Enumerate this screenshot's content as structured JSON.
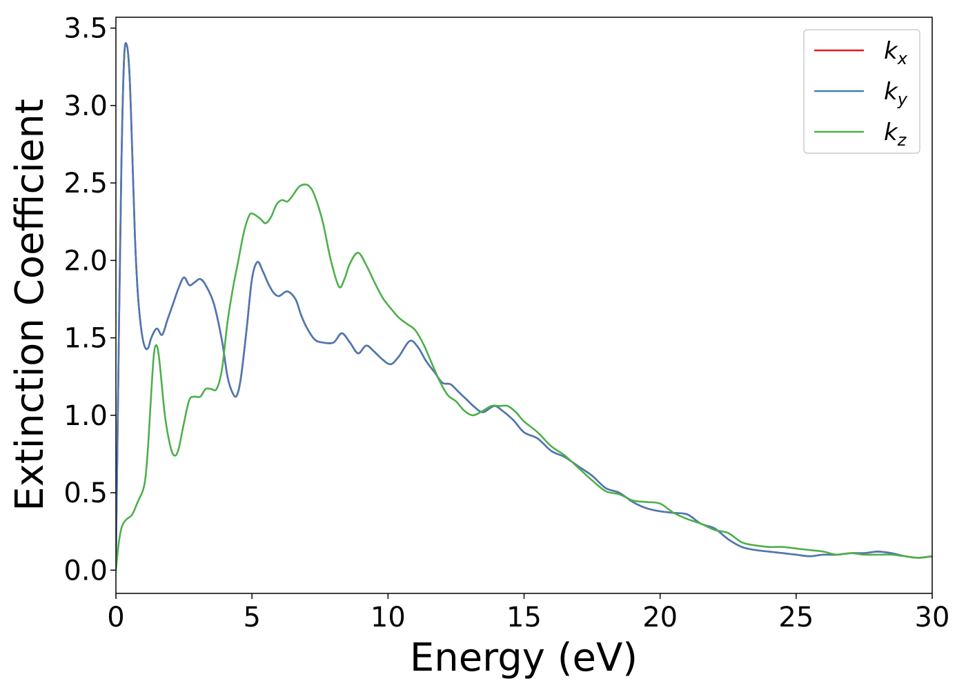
{
  "chart_data": {
    "type": "line",
    "xlabel": "Energy (eV)",
    "ylabel": "Extinction Coefficient",
    "xlim": [
      0,
      30
    ],
    "ylim": [
      -0.15,
      3.57
    ],
    "xticks": [
      0,
      5,
      10,
      15,
      20,
      25,
      30
    ],
    "xtick_labels": [
      "0",
      "5",
      "10",
      "15",
      "20",
      "25",
      "30"
    ],
    "yticks": [
      0.0,
      0.5,
      1.0,
      1.5,
      2.0,
      2.5,
      3.0,
      3.5
    ],
    "ytick_labels": [
      "0.0",
      "0.5",
      "1.0",
      "1.5",
      "2.0",
      "2.5",
      "3.0",
      "3.5"
    ],
    "grid": false,
    "legend_position": "top-right",
    "series": [
      {
        "name": "k",
        "sub": "x",
        "color": "#e41a1c",
        "x": [
          0,
          0.1,
          0.2,
          0.3,
          0.4,
          0.5,
          0.6,
          0.7,
          0.8,
          0.9,
          1.0,
          1.1,
          1.2,
          1.3,
          1.5,
          1.7,
          1.9,
          2.1,
          2.3,
          2.5,
          2.7,
          2.9,
          3.1,
          3.3,
          3.6,
          3.9,
          4.1,
          4.3,
          4.45,
          4.6,
          4.8,
          5.0,
          5.2,
          5.4,
          5.6,
          5.8,
          6.0,
          6.3,
          6.6,
          6.8,
          7.0,
          7.3,
          7.6,
          8.0,
          8.3,
          8.6,
          8.9,
          9.2,
          9.5,
          9.8,
          10.1,
          10.4,
          10.8,
          11.1,
          11.4,
          11.7,
          12.0,
          12.3,
          12.6,
          12.9,
          13.2,
          13.5,
          13.9,
          14.2,
          14.6,
          15.0,
          15.5,
          16.0,
          16.5,
          17.0,
          17.5,
          18.0,
          18.5,
          19.0,
          19.5,
          20.0,
          20.5,
          21.0,
          21.5,
          22.0,
          22.5,
          23.0,
          23.5,
          24.0,
          24.5,
          25.0,
          25.5,
          26.0,
          26.5,
          27.0,
          27.5,
          28.0,
          28.5,
          29.0,
          29.5,
          30.0
        ],
        "y": [
          0.05,
          1.4,
          2.6,
          3.3,
          3.39,
          3.2,
          2.7,
          2.15,
          1.8,
          1.6,
          1.48,
          1.43,
          1.44,
          1.5,
          1.56,
          1.52,
          1.62,
          1.72,
          1.82,
          1.89,
          1.84,
          1.86,
          1.88,
          1.84,
          1.72,
          1.48,
          1.25,
          1.14,
          1.13,
          1.25,
          1.55,
          1.88,
          1.99,
          1.93,
          1.85,
          1.79,
          1.77,
          1.8,
          1.75,
          1.65,
          1.57,
          1.49,
          1.47,
          1.47,
          1.53,
          1.47,
          1.4,
          1.45,
          1.41,
          1.36,
          1.33,
          1.38,
          1.48,
          1.44,
          1.35,
          1.28,
          1.21,
          1.2,
          1.15,
          1.1,
          1.05,
          1.02,
          1.06,
          1.03,
          0.97,
          0.89,
          0.85,
          0.77,
          0.73,
          0.67,
          0.61,
          0.53,
          0.5,
          0.44,
          0.4,
          0.38,
          0.37,
          0.36,
          0.3,
          0.27,
          0.2,
          0.15,
          0.13,
          0.12,
          0.11,
          0.1,
          0.09,
          0.1,
          0.1,
          0.11,
          0.11,
          0.12,
          0.11,
          0.09,
          0.08,
          0.09
        ]
      },
      {
        "name": "k",
        "sub": "y",
        "color": "#4a7ab5",
        "x": [
          0,
          0.1,
          0.2,
          0.3,
          0.4,
          0.5,
          0.6,
          0.7,
          0.8,
          0.9,
          1.0,
          1.1,
          1.2,
          1.3,
          1.5,
          1.7,
          1.9,
          2.1,
          2.3,
          2.5,
          2.7,
          2.9,
          3.1,
          3.3,
          3.6,
          3.9,
          4.1,
          4.3,
          4.45,
          4.6,
          4.8,
          5.0,
          5.2,
          5.4,
          5.6,
          5.8,
          6.0,
          6.3,
          6.6,
          6.8,
          7.0,
          7.3,
          7.6,
          8.0,
          8.3,
          8.6,
          8.9,
          9.2,
          9.5,
          9.8,
          10.1,
          10.4,
          10.8,
          11.1,
          11.4,
          11.7,
          12.0,
          12.3,
          12.6,
          12.9,
          13.2,
          13.5,
          13.9,
          14.2,
          14.6,
          15.0,
          15.5,
          16.0,
          16.5,
          17.0,
          17.5,
          18.0,
          18.5,
          19.0,
          19.5,
          20.0,
          20.5,
          21.0,
          21.5,
          22.0,
          22.5,
          23.0,
          23.5,
          24.0,
          24.5,
          25.0,
          25.5,
          26.0,
          26.5,
          27.0,
          27.5,
          28.0,
          28.5,
          29.0,
          29.5,
          30.0
        ],
        "y": [
          0.05,
          1.4,
          2.6,
          3.3,
          3.39,
          3.2,
          2.7,
          2.15,
          1.8,
          1.6,
          1.48,
          1.43,
          1.44,
          1.5,
          1.56,
          1.52,
          1.62,
          1.72,
          1.82,
          1.89,
          1.84,
          1.86,
          1.88,
          1.84,
          1.72,
          1.48,
          1.25,
          1.14,
          1.13,
          1.25,
          1.55,
          1.88,
          1.99,
          1.93,
          1.85,
          1.79,
          1.77,
          1.8,
          1.75,
          1.65,
          1.57,
          1.49,
          1.47,
          1.47,
          1.53,
          1.47,
          1.4,
          1.45,
          1.41,
          1.36,
          1.33,
          1.38,
          1.48,
          1.44,
          1.35,
          1.28,
          1.21,
          1.2,
          1.15,
          1.1,
          1.05,
          1.02,
          1.06,
          1.03,
          0.97,
          0.89,
          0.85,
          0.77,
          0.73,
          0.67,
          0.61,
          0.53,
          0.5,
          0.44,
          0.4,
          0.38,
          0.37,
          0.36,
          0.3,
          0.27,
          0.2,
          0.15,
          0.13,
          0.12,
          0.11,
          0.1,
          0.09,
          0.1,
          0.1,
          0.11,
          0.11,
          0.12,
          0.11,
          0.09,
          0.08,
          0.09
        ]
      },
      {
        "name": "k",
        "sub": "z",
        "color": "#4daf4a",
        "x": [
          0,
          0.1,
          0.2,
          0.3,
          0.4,
          0.6,
          0.8,
          1.0,
          1.1,
          1.2,
          1.3,
          1.4,
          1.5,
          1.6,
          1.8,
          2.0,
          2.15,
          2.3,
          2.5,
          2.7,
          2.9,
          3.1,
          3.3,
          3.5,
          3.7,
          3.9,
          4.1,
          4.3,
          4.5,
          4.7,
          4.9,
          5.05,
          5.3,
          5.5,
          5.7,
          5.9,
          6.1,
          6.3,
          6.5,
          6.7,
          6.9,
          7.1,
          7.3,
          7.6,
          7.9,
          8.2,
          8.4,
          8.6,
          8.9,
          9.2,
          9.5,
          9.8,
          10.1,
          10.4,
          10.7,
          11.0,
          11.3,
          11.6,
          11.9,
          12.2,
          12.5,
          12.8,
          13.1,
          13.4,
          13.8,
          14.1,
          14.4,
          14.7,
          15.0,
          15.5,
          16.0,
          16.5,
          17.0,
          17.5,
          18.0,
          18.5,
          19.0,
          19.5,
          20.0,
          20.5,
          21.0,
          21.5,
          22.0,
          22.5,
          23.0,
          23.5,
          24.0,
          24.5,
          25.0,
          25.5,
          26.0,
          26.5,
          27.0,
          27.5,
          28.0,
          28.5,
          29.0,
          29.5,
          30.0
        ],
        "y": [
          0.0,
          0.17,
          0.27,
          0.31,
          0.33,
          0.36,
          0.44,
          0.52,
          0.62,
          0.85,
          1.15,
          1.4,
          1.45,
          1.35,
          1.0,
          0.8,
          0.74,
          0.78,
          0.95,
          1.1,
          1.12,
          1.12,
          1.17,
          1.17,
          1.17,
          1.3,
          1.6,
          1.82,
          2.0,
          2.18,
          2.29,
          2.3,
          2.27,
          2.24,
          2.28,
          2.36,
          2.39,
          2.38,
          2.42,
          2.47,
          2.49,
          2.48,
          2.42,
          2.25,
          2.0,
          1.83,
          1.88,
          1.98,
          2.05,
          1.97,
          1.86,
          1.76,
          1.69,
          1.63,
          1.59,
          1.55,
          1.46,
          1.34,
          1.22,
          1.13,
          1.09,
          1.03,
          1.0,
          1.02,
          1.06,
          1.06,
          1.06,
          1.02,
          0.96,
          0.89,
          0.8,
          0.74,
          0.66,
          0.58,
          0.51,
          0.49,
          0.45,
          0.44,
          0.43,
          0.37,
          0.33,
          0.3,
          0.26,
          0.24,
          0.18,
          0.16,
          0.15,
          0.15,
          0.14,
          0.13,
          0.12,
          0.1,
          0.11,
          0.1,
          0.1,
          0.1,
          0.09,
          0.08,
          0.09
        ]
      }
    ]
  }
}
